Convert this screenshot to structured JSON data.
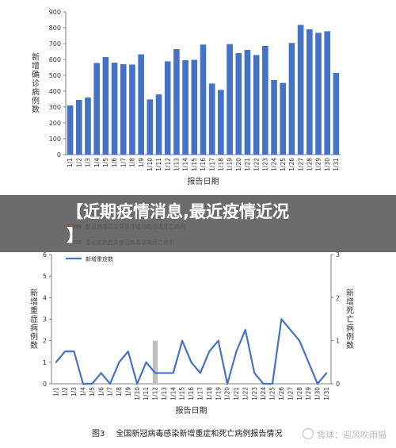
{
  "overlay": {
    "title_line1": "【近期疫情消息,最近疫情近况",
    "title_line2": "】"
  },
  "caption": {
    "figure_number": "图3",
    "text": "全国新冠病毒感染新增重症和死亡病例报告情况"
  },
  "watermark": {
    "text": "雪球：迎风吹雨猫"
  },
  "colors": {
    "bar_blue": "#4472c4",
    "line_blue": "#4472c4",
    "legend_orange": "#c55a11",
    "legend_gray": "#a5a5a5",
    "gray_bar": "#bfbfbf",
    "axis": "#7f7f7f",
    "overlay": "#5c5c5c"
  },
  "chart_data": [
    {
      "type": "bar",
      "categories": [
        "1/1",
        "1/2",
        "1/3",
        "1/4",
        "1/5",
        "1/6",
        "1/7",
        "1/8",
        "1/9",
        "1/10",
        "1/11",
        "1/12",
        "1/13",
        "1/14",
        "1/15",
        "1/16",
        "1/17",
        "1/18",
        "1/19",
        "1/20",
        "1/21",
        "1/22",
        "1/23",
        "1/24",
        "1/25",
        "1/26",
        "1/27",
        "1/28",
        "1/29",
        "1/30",
        "1/31"
      ],
      "values": [
        310,
        345,
        360,
        578,
        615,
        580,
        570,
        568,
        632,
        348,
        380,
        588,
        665,
        595,
        598,
        694,
        448,
        408,
        697,
        640,
        660,
        628,
        685,
        470,
        452,
        704,
        818,
        790,
        768,
        778,
        515
      ],
      "ylabel": "新增确诊病例数",
      "xlabel": "报告日期",
      "ylim": [
        0,
        900
      ],
      "yticks": [
        0,
        100,
        200,
        300,
        400,
        500,
        600,
        700,
        800,
        900
      ],
      "grid": false
    },
    {
      "type": "line",
      "categories": [
        "1/1",
        "1/2",
        "1/3",
        "1/4",
        "1/5",
        "1/6",
        "1/7",
        "1/8",
        "1/9",
        "1/10",
        "1/11",
        "1/12",
        "1/13",
        "1/14",
        "1/15",
        "1/16",
        "1/17",
        "1/18",
        "1/19",
        "1/20",
        "1/21",
        "1/22",
        "1/23",
        "1/24",
        "1/25",
        "1/26",
        "1/27",
        "1/28",
        "1/29",
        "1/30",
        "1/31"
      ],
      "series": [
        {
          "name": "新增重症数",
          "axis": "left",
          "kind": "line",
          "values": [
            1,
            1.5,
            1.5,
            0,
            0,
            0.5,
            0,
            1,
            1.5,
            0,
            1,
            0.5,
            0.5,
            0.5,
            2,
            1,
            0.5,
            1.5,
            2,
            0,
            1.5,
            2.5,
            0.5,
            0,
            0,
            3,
            2.5,
            2,
            1,
            0,
            0.5
          ]
        },
        {
          "name": "新冠病毒感染导致呼吸功能衰竭死亡病例",
          "axis": "right",
          "kind": "bar",
          "values": [
            0,
            0,
            0,
            0,
            0,
            0,
            0,
            0,
            0,
            0,
            0,
            0,
            0,
            0,
            0,
            0,
            0,
            0,
            0,
            0,
            0,
            0,
            0,
            0,
            0,
            0,
            0,
            0,
            0,
            0,
            0
          ]
        },
        {
          "name": "基础疾病合并新冠病毒感染死亡病例",
          "axis": "right",
          "kind": "bar",
          "values": [
            0,
            0,
            0,
            0,
            0,
            0,
            0,
            0,
            0,
            0,
            0,
            1,
            0,
            0,
            0,
            0,
            0,
            0,
            0,
            0,
            0,
            0,
            0,
            0,
            0,
            0,
            0,
            0,
            0,
            0,
            0
          ]
        }
      ],
      "ylabel_left": "新增重症病例数",
      "ylabel_right": "新增死亡病例数",
      "xlabel": "报告日期",
      "ylim_left": [
        0,
        6
      ],
      "yticks_left": [
        0,
        1,
        2,
        3,
        4,
        5,
        6
      ],
      "ylim_right": [
        0,
        3
      ],
      "yticks_right": [
        0,
        1,
        2,
        3
      ],
      "legend": "top-left",
      "grid": false
    }
  ]
}
